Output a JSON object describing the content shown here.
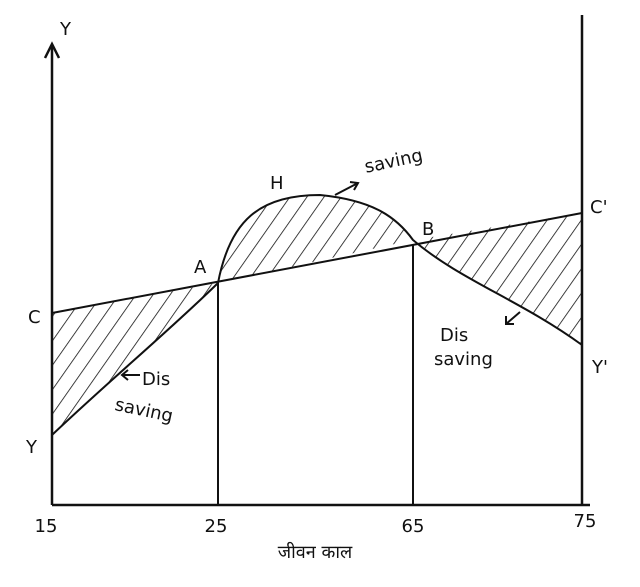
{
  "axes": {
    "y_label": "Y",
    "x_title": "जीवन काल",
    "x_labels": [
      "15",
      "25",
      "65",
      "75"
    ]
  },
  "points": {
    "c": "C",
    "y": "Y",
    "a": "A",
    "h": "H",
    "b": "B",
    "c_prime": "C'",
    "y_prime": "Y'"
  },
  "annotations": {
    "saving": "saving",
    "dissaving_left": [
      "Dis",
      "saving"
    ],
    "dissaving_right": [
      "Dis",
      "saving"
    ]
  }
}
